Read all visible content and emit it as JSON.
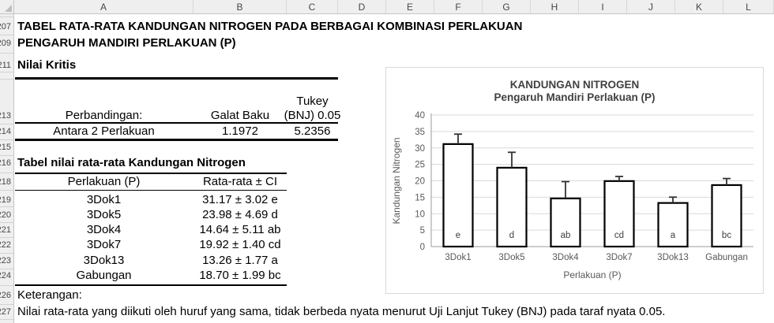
{
  "sheet": {
    "column_headers": [
      "A",
      "B",
      "C",
      "D",
      "E",
      "F",
      "G",
      "H",
      "I",
      "J",
      "K",
      "L"
    ],
    "visible_row_numbers": [
      "207",
      "209",
      "211",
      "213",
      "214",
      "215",
      "216",
      "218",
      "219",
      "220",
      "221",
      "222",
      "223",
      "224",
      "226",
      "227"
    ]
  },
  "content": {
    "title": "TABEL RATA-RATA KANDUNGAN NITROGEN PADA BERBAGAI KOMBINASI PERLAKUAN",
    "subtitle": "PENGARUH MANDIRI PERLAKUAN (P)",
    "section1_heading": "Nilai Kritis",
    "critical_table": {
      "col1_header": "Perbandingan:",
      "col2_header": "Galat Baku",
      "col3_header_line1": "Tukey",
      "col3_header_line2": "(BNJ) 0.05",
      "rows": [
        {
          "label": "Antara 2 Perlakuan",
          "galat_baku": "1.1972",
          "tukey": "5.2356"
        }
      ]
    },
    "section2_heading": "Tabel nilai rata-rata Kandungan Nitrogen",
    "means_table": {
      "col1_header": "Perlakuan (P)",
      "col2_header": "Rata-rata ± CI",
      "rows": [
        {
          "perlakuan": "3Dok1",
          "rata": "31.17 ± 3.02 e"
        },
        {
          "perlakuan": "3Dok5",
          "rata": "23.98 ± 4.69 d"
        },
        {
          "perlakuan": "3Dok4",
          "rata": "14.64 ± 5.11 ab"
        },
        {
          "perlakuan": "3Dok7",
          "rata": "19.92 ± 1.40 cd"
        },
        {
          "perlakuan": "3Dok13",
          "rata": "13.26 ± 1.77 a"
        },
        {
          "perlakuan": "Gabungan",
          "rata": "18.70 ± 1.99 bc"
        }
      ]
    },
    "keterangan_label": "Keterangan:",
    "keterangan_text": "Nilai rata-rata yang diikuti oleh huruf yang sama, tidak berbeda nyata menurut Uji Lanjut Tukey (BNJ) pada taraf nyata 0.05."
  },
  "chart_data": {
    "type": "bar",
    "title": "KANDUNGAN NITROGEN",
    "subtitle": "Pengaruh Mandiri Perlakuan (P)",
    "categories": [
      "3Dok1",
      "3Dok5",
      "3Dok4",
      "3Dok7",
      "3Dok13",
      "Gabungan"
    ],
    "values": [
      31.17,
      23.98,
      14.64,
      19.92,
      13.26,
      18.7
    ],
    "error_upper": [
      3.02,
      4.69,
      5.11,
      1.4,
      1.77,
      1.99
    ],
    "bar_labels": [
      "e",
      "d",
      "ab",
      "cd",
      "a",
      "bc"
    ],
    "xlabel": "Perlakuan (P)",
    "ylabel": "Kandungan Nitrogen",
    "ylim": [
      0,
      40
    ],
    "ytick_step": 5,
    "grid": true,
    "legend": "none",
    "colors": {
      "bar_fill": "#FFFFFF",
      "bar_border": "#000000",
      "error_bar": "#333333",
      "gridline": "#D9D9D9",
      "axis_line": "#9B9B9B",
      "title_text": "#404040",
      "axis_text": "#595959",
      "chart_border": "#D9D9D9"
    }
  }
}
